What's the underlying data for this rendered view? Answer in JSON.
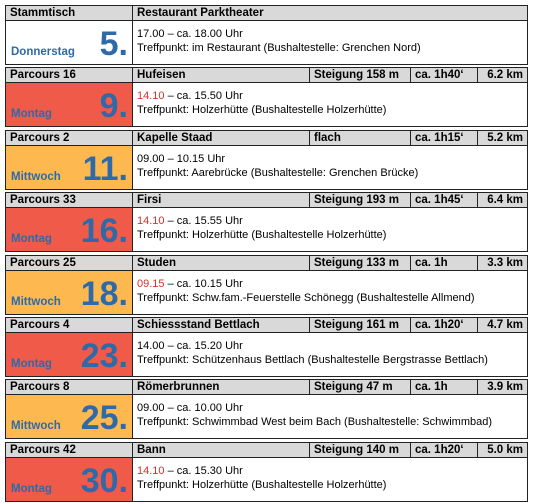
{
  "blocks": [
    {
      "parcours": "Stammtisch",
      "route": "Restaurant Parktheater",
      "weekday": "Donnerstag",
      "day": "5.",
      "cell_color": "white",
      "time_start": "17.00",
      "time_rest": " – ca. 18.00 Uhr",
      "start_highlight": false,
      "meeting": "Treffpunkt: im Restaurant (Bushaltestelle: Grenchen Nord)"
    },
    {
      "parcours": "Parcours 16",
      "route": "Hufeisen",
      "steigung": "Steigung 158 m",
      "duration": "ca. 1h40‘",
      "distance": "6.2 km",
      "weekday": "Montag",
      "day": "9.",
      "cell_color": "red",
      "time_start": "14.10",
      "time_rest": " – ca. 15.50 Uhr",
      "start_highlight": true,
      "meeting": "Treffpunkt: Holzerhütte (Bushaltestelle Holzerhütte)"
    },
    {
      "parcours": "Parcours 2",
      "route": "Kapelle Staad",
      "steigung": "flach",
      "duration": "ca. 1h15‘",
      "distance": "5.2 km",
      "weekday": "Mittwoch",
      "day": "11.",
      "cell_color": "orange",
      "time_start": "09.00",
      "time_rest": " – 10.15 Uhr",
      "start_highlight": false,
      "meeting": "Treffpunkt: Aarebrücke (Bushaltestelle: Grenchen Brücke)"
    },
    {
      "parcours": "Parcours 33",
      "route": "Firsi",
      "steigung": "Steigung 193 m",
      "duration": "ca. 1h45‘",
      "distance": "6.4 km",
      "weekday": "Montag",
      "day": "16.",
      "cell_color": "red",
      "time_start": "14.10",
      "time_rest": " – ca. 15.55 Uhr",
      "start_highlight": true,
      "meeting": "Treffpunkt: Holzerhütte (Bushaltestelle Holzerhütte)"
    },
    {
      "parcours": "Parcours 25",
      "route": "Studen",
      "steigung": "Steigung 133 m",
      "duration": "ca. 1h",
      "distance": "3.3 km",
      "weekday": "Mittwoch",
      "day": "18.",
      "cell_color": "orange",
      "time_start": "09.15",
      "time_rest": " – ca. 10.15 Uhr",
      "start_highlight": true,
      "meeting": "Treffpunkt: Schw.fam.-Feuerstelle Schönegg (Bushaltestelle Allmend)"
    },
    {
      "parcours": "Parcours 4",
      "route": "Schiessstand Bettlach",
      "steigung": "Steigung 161 m",
      "duration": "ca. 1h20‘",
      "distance": "4.7 km",
      "weekday": "Montag",
      "day": "23.",
      "cell_color": "red",
      "time_start": "14.00",
      "time_rest": " – ca. 15.20 Uhr",
      "start_highlight": false,
      "meeting": "Treffpunkt: Schützenhaus Bettlach (Bushaltestelle Bergstrasse Bettlach)"
    },
    {
      "parcours": "Parcours 8",
      "route": "Römerbrunnen",
      "steigung": "Steigung 47 m",
      "duration": "ca. 1h",
      "distance": "3.9 km",
      "weekday": "Mittwoch",
      "day": "25.",
      "cell_color": "orange",
      "time_start": "09.00",
      "time_rest": " – ca. 10.00 Uhr",
      "start_highlight": false,
      "meeting": "Treffpunkt: Schwimmbad West beim Bach (Bushaltestelle: Schwimmbad)"
    },
    {
      "parcours": "Parcours 42",
      "route": "Bann",
      "steigung": "Steigung 140 m",
      "duration": "ca. 1h20‘",
      "distance": "5.0 km",
      "weekday": "Montag",
      "day": "30.",
      "cell_color": "red",
      "time_start": "14.10",
      "time_rest": " – ca. 15.30 Uhr",
      "start_highlight": true,
      "meeting": "Treffpunkt: Holzerhütte (Bushaltestelle Holzerhütte)"
    }
  ]
}
